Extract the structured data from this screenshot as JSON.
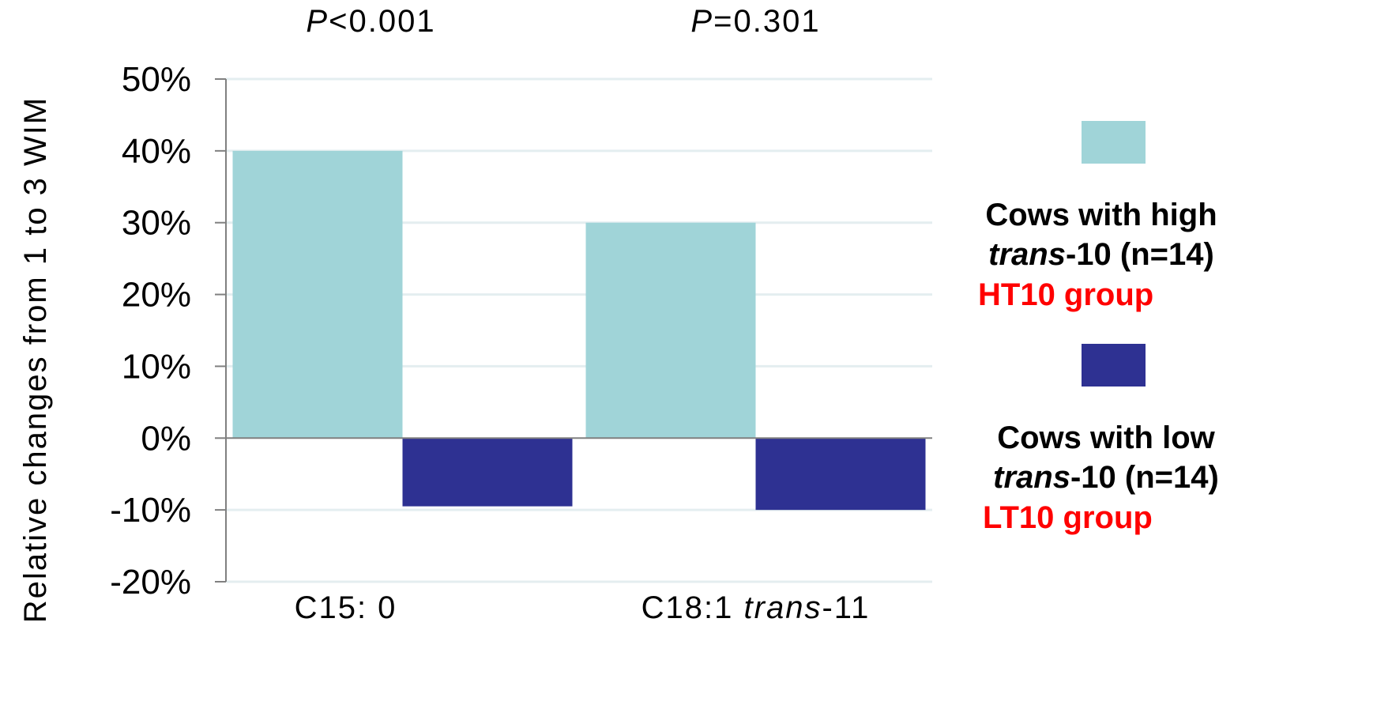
{
  "chart_data": {
    "type": "bar",
    "categories": [
      {
        "prefix": "C15: 0",
        "italic": "",
        "suffix": ""
      },
      {
        "prefix": "C18:1 ",
        "italic": "trans",
        "suffix": "-11"
      }
    ],
    "p_values": [
      {
        "italic": "P",
        "text": "<0.001"
      },
      {
        "italic": "P",
        "text": "=0.301"
      }
    ],
    "ylabel": "Relative changes from 1 to 3 WIM",
    "ylim": [
      -0.2,
      0.5
    ],
    "yticks": [
      0.5,
      0.4,
      0.3,
      0.2,
      0.1,
      0,
      -0.1,
      -0.2
    ],
    "ytick_labels": [
      "50%",
      "40%",
      "30%",
      "20%",
      "10%",
      "0%",
      "-10%",
      "-20%"
    ],
    "series": [
      {
        "name_lines": [
          {
            "italic": "",
            "text": "Cows with high"
          },
          {
            "italic": "trans",
            "text": "-10 (n=14)"
          }
        ],
        "group_label": "HT10 group",
        "color": "#a0d4d8",
        "values": [
          0.4,
          0.3
        ]
      },
      {
        "name_lines": [
          {
            "italic": "",
            "text": "Cows with low"
          },
          {
            "italic": "trans",
            "text": "-10 (n=14)"
          }
        ],
        "group_label": "LT10 group",
        "color": "#2e3192",
        "values": [
          -0.095,
          -0.1
        ]
      }
    ],
    "colors": {
      "axis": "#808080",
      "gridline": "#e4eef0",
      "group_label": "#ff0000"
    },
    "grid": true,
    "legend_position": "right"
  }
}
